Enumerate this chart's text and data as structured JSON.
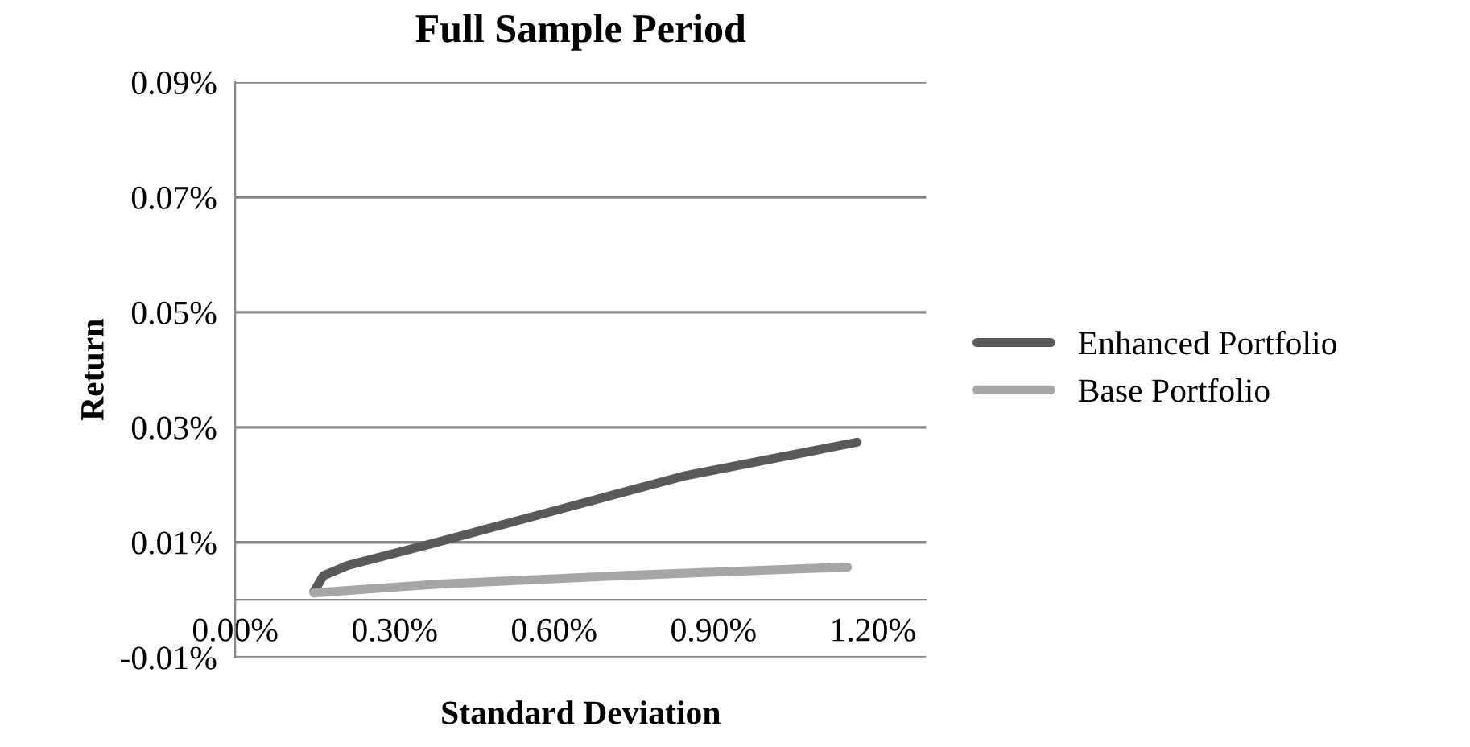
{
  "chart_data": {
    "type": "line",
    "title": "Full Sample Period",
    "xlabel": "Standard Deviation",
    "ylabel": "Return",
    "xlim": [
      0,
      1.3
    ],
    "xticks": [
      {
        "value": 0,
        "label": "0.00%"
      },
      {
        "value": 0.3,
        "label": "0.30%"
      },
      {
        "value": 0.6,
        "label": "0.60%"
      },
      {
        "value": 0.9,
        "label": "0.90%"
      },
      {
        "value": 1.2,
        "label": "1.20%"
      }
    ],
    "ylim": [
      -0.01,
      0.09
    ],
    "yticks": [
      {
        "value": -0.01,
        "label": "-0.01%"
      },
      {
        "value": 0.01,
        "label": "0.01%"
      },
      {
        "value": 0.03,
        "label": "0.03%"
      },
      {
        "value": 0.05,
        "label": "0.05%"
      },
      {
        "value": 0.07,
        "label": "0.07%"
      },
      {
        "value": 0.09,
        "label": "0.09%"
      }
    ],
    "grid": "y",
    "legend": "right",
    "marker": "none",
    "line_style": "solid",
    "series": [
      {
        "name": "Enhanced Portfolio",
        "color": "#595959",
        "x": [
          0.148,
          0.166,
          0.212,
          0.376,
          0.609,
          0.843,
          1.17
        ],
        "values": [
          0.0014,
          0.0042,
          0.006,
          0.0099,
          0.0157,
          0.0215,
          0.0274
        ]
      },
      {
        "name": "Base Portfolio",
        "color": "#a6a6a6",
        "x": [
          0.148,
          0.376,
          0.726,
          1.152
        ],
        "values": [
          0.0012,
          0.0027,
          0.0042,
          0.0057
        ]
      }
    ]
  }
}
